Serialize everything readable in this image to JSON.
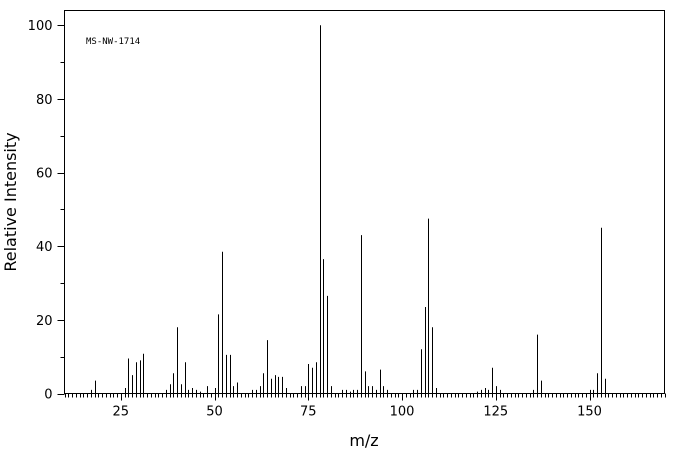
{
  "chart_data": {
    "type": "bar",
    "annotation": "MS-NW-1714",
    "xlabel": "m/z",
    "ylabel": "Relative Intensity",
    "xlim": [
      10,
      170
    ],
    "ylim": [
      0,
      104
    ],
    "x_ticks": [
      25,
      50,
      75,
      100,
      125,
      150
    ],
    "y_ticks": [
      0,
      20,
      40,
      60,
      80,
      100
    ],
    "x_minor_step": 1,
    "y_minor_step": 10,
    "grid": false,
    "series": [
      {
        "x": [
          17,
          18,
          26,
          27,
          28,
          29,
          30,
          31,
          37,
          38,
          39,
          40,
          41,
          42,
          43,
          44,
          45,
          46,
          48,
          50,
          51,
          52,
          53,
          54,
          55,
          56,
          60,
          61,
          62,
          63,
          64,
          65,
          66,
          67,
          68,
          69,
          73,
          74,
          75,
          76,
          77,
          78,
          79,
          80,
          81,
          84,
          85,
          86,
          87,
          88,
          89,
          90,
          91,
          92,
          93,
          94,
          95,
          96,
          103,
          104,
          105,
          106,
          107,
          108,
          109,
          120,
          121,
          122,
          123,
          124,
          125,
          126,
          135,
          136,
          137,
          150,
          151,
          152,
          153,
          154
        ],
        "values": [
          1,
          3.5,
          1.5,
          9.5,
          5,
          8.5,
          9,
          10.8,
          1,
          2.5,
          5.5,
          18,
          2.5,
          8.5,
          1,
          1.5,
          1,
          0.5,
          2,
          1.5,
          21.5,
          38.5,
          10.5,
          10.5,
          2,
          3,
          1,
          1,
          2,
          5.5,
          14.5,
          4,
          5,
          4.5,
          4.5,
          1.5,
          2,
          2,
          8,
          7,
          8.5,
          100,
          36.5,
          26.5,
          2,
          1,
          1,
          0.5,
          1,
          1,
          43,
          6,
          2,
          2,
          1,
          6.5,
          2,
          1,
          1,
          1,
          12,
          23.5,
          47.5,
          18,
          1.5,
          0.5,
          1,
          1.5,
          1,
          7,
          2,
          1,
          1,
          16,
          3.5,
          1,
          1,
          5.5,
          45,
          4
        ]
      }
    ]
  }
}
